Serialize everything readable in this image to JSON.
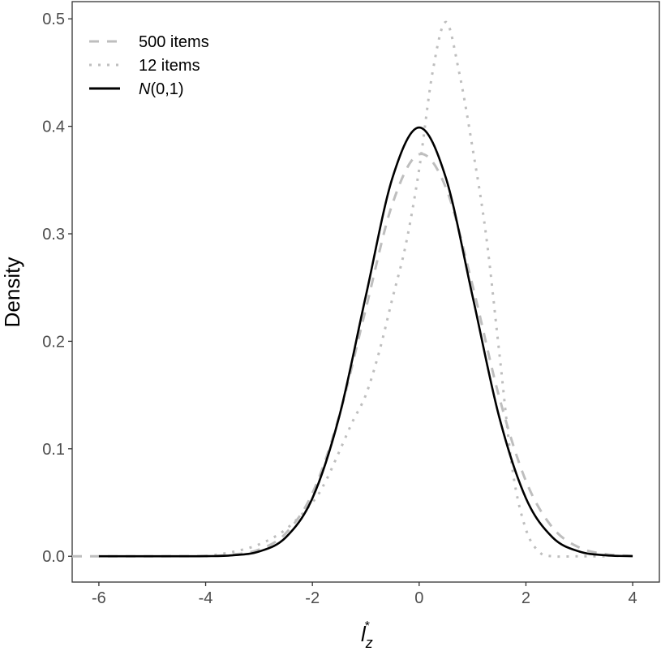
{
  "chart_data": {
    "type": "line",
    "title": "",
    "xlabel": {
      "main": "l",
      "sub": "z",
      "sup": "*"
    },
    "ylabel": "Density",
    "xlim": [
      -6.5,
      4.5
    ],
    "ylim": [
      -0.024,
      0.516
    ],
    "xticks": [
      -6,
      -4,
      -2,
      0,
      2,
      4
    ],
    "xtick_labels": [
      "-6",
      "-4",
      "-2",
      "0",
      "2",
      "4"
    ],
    "yticks": [
      0.0,
      0.1,
      0.2,
      0.3,
      0.4,
      0.5
    ],
    "ytick_labels": [
      "0.0",
      "0.1",
      "0.2",
      "0.3",
      "0.4",
      "0.5"
    ],
    "grid": false,
    "legend_position": "top-left",
    "series": [
      {
        "name": "500 items",
        "legend_label": "500 items",
        "style": "dashed",
        "color": "#bebebe",
        "x": [
          -6.5,
          -6,
          -5,
          -4,
          -3.5,
          -3,
          -2.5,
          -2,
          -1.5,
          -1,
          -0.5,
          0,
          0.5,
          1,
          1.5,
          2,
          2.5,
          3,
          3.5,
          4
        ],
        "y": [
          0,
          0,
          0,
          0.0003,
          0.0015,
          0.0062,
          0.0213,
          0.0587,
          0.13,
          0.23,
          0.328,
          0.374,
          0.343,
          0.252,
          0.148,
          0.07,
          0.0266,
          0.0081,
          0.002,
          0.0004
        ]
      },
      {
        "name": "12 items",
        "legend_label": "12 items",
        "style": "dotted",
        "color": "#bebebe",
        "x": [
          -4,
          -3.5,
          -3,
          -2.5,
          -2,
          -1.75,
          -1.5,
          -1.25,
          -1,
          -0.75,
          -0.5,
          -0.25,
          0,
          0.25,
          0.5,
          0.75,
          1,
          1.25,
          1.5,
          1.75,
          2,
          2.25,
          2.5,
          3,
          3.5
        ],
        "y": [
          0,
          0.004,
          0.011,
          0.025,
          0.05,
          0.07,
          0.097,
          0.125,
          0.15,
          0.19,
          0.24,
          0.29,
          0.36,
          0.45,
          0.497,
          0.45,
          0.38,
          0.3,
          0.19,
          0.08,
          0.025,
          0.004,
          0,
          0,
          0
        ]
      },
      {
        "name": "N(0,1)",
        "legend_label": {
          "italic": "N",
          "rest": "(0,1)"
        },
        "style": "solid",
        "color": "#000000",
        "x": [
          -6,
          -5,
          -4.5,
          -4,
          -3.5,
          -3,
          -2.5,
          -2,
          -1.5,
          -1,
          -0.5,
          0,
          0.5,
          1,
          1.5,
          2,
          2.5,
          3,
          3.5,
          4
        ],
        "y": [
          0,
          0,
          0,
          0.0001,
          0.0009,
          0.0044,
          0.0175,
          0.054,
          0.1295,
          0.242,
          0.3521,
          0.3989,
          0.3521,
          0.242,
          0.1295,
          0.054,
          0.0175,
          0.0044,
          0.0009,
          0.0001
        ]
      }
    ]
  }
}
